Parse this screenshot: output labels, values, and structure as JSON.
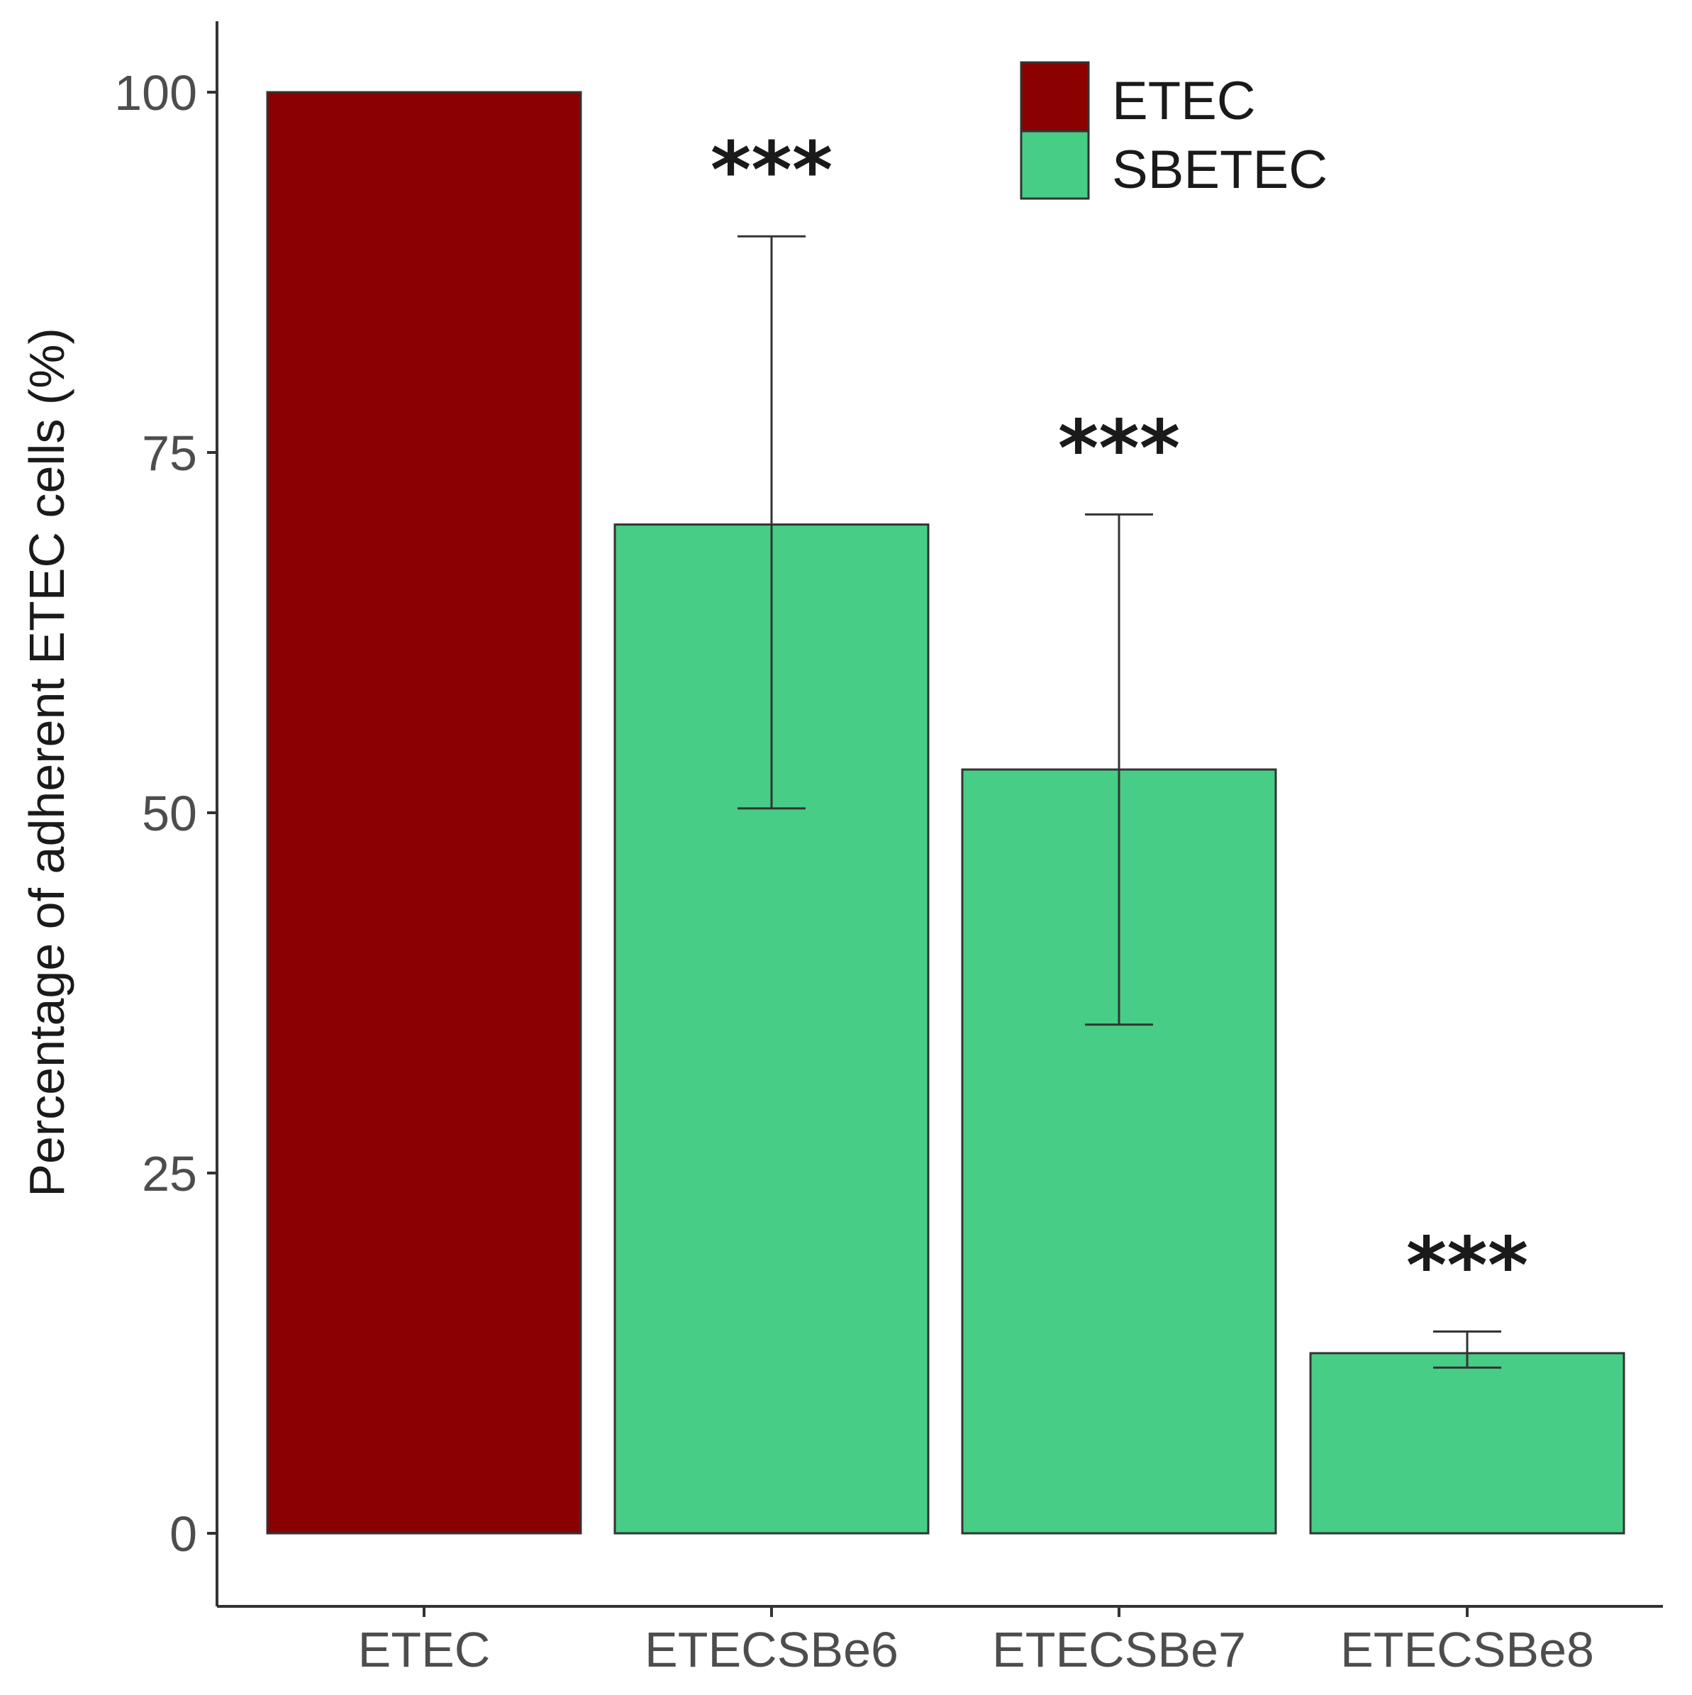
{
  "chart_data": {
    "type": "bar",
    "categories": [
      "ETEC",
      "ETECSBe6",
      "ETECSBe7",
      "ETECSBe8"
    ],
    "values": [
      100,
      70,
      53,
      12.5
    ],
    "error_bars": [
      null,
      [
        50.3,
        90
      ],
      [
        35.3,
        70.7
      ],
      [
        11.5,
        14
      ]
    ],
    "groups": [
      "ETEC",
      "SBETEC",
      "SBETEC",
      "SBETEC"
    ],
    "significance": [
      "",
      "***",
      "***",
      "***"
    ],
    "xlabel": "",
    "ylabel": "Percentage of adherent ETEC cells (%)",
    "ylim": [
      -3.2,
      105
    ],
    "yticks": [
      0,
      25,
      50,
      75,
      100
    ],
    "grid": false,
    "legend": {
      "position": "top-right",
      "entries": [
        {
          "label": "ETEC",
          "color": "#8B0000"
        },
        {
          "label": "SBETEC",
          "color": "#47CD85"
        }
      ]
    }
  }
}
